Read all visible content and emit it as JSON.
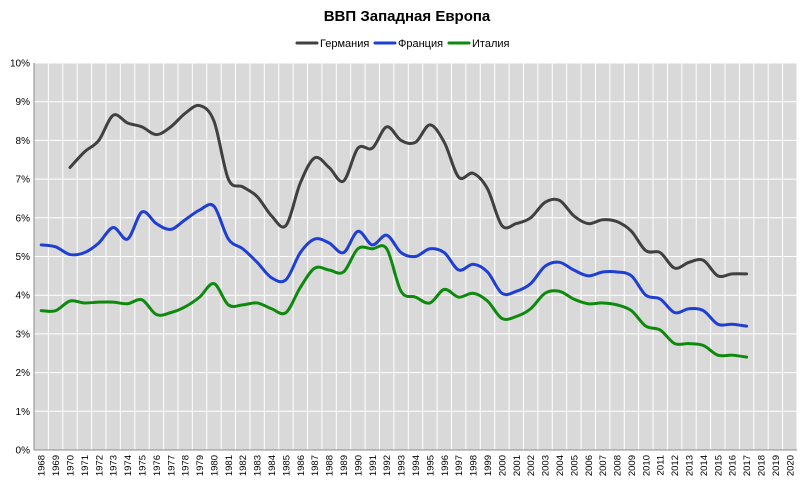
{
  "chart_data": {
    "type": "line",
    "title": "ВВП Западная Европа",
    "xlabel": "",
    "ylabel": "",
    "ylim": [
      0,
      10
    ],
    "y_ticks": [
      "0%",
      "1%",
      "2%",
      "3%",
      "4%",
      "5%",
      "6%",
      "7%",
      "8%",
      "9%",
      "10%"
    ],
    "categories": [
      "1968",
      "1969",
      "1970",
      "1971",
      "1972",
      "1973",
      "1974",
      "1975",
      "1976",
      "1977",
      "1978",
      "1979",
      "1980",
      "1981",
      "1982",
      "1983",
      "1984",
      "1985",
      "1986",
      "1987",
      "1988",
      "1989",
      "1990",
      "1991",
      "1992",
      "1993",
      "1994",
      "1995",
      "1996",
      "1997",
      "1998",
      "1999",
      "2000",
      "2001",
      "2002",
      "2003",
      "2004",
      "2005",
      "2006",
      "2007",
      "2008",
      "2009",
      "2010",
      "2011",
      "2012",
      "2013",
      "2014",
      "2015",
      "2016",
      "2017",
      "2018",
      "2019",
      "2020"
    ],
    "grid": true,
    "legend_position": "top",
    "series": [
      {
        "name": "Германия",
        "color": "#404040",
        "values": [
          null,
          null,
          7.3,
          7.7,
          8.0,
          8.65,
          8.45,
          8.35,
          8.15,
          8.35,
          8.7,
          8.9,
          8.5,
          7.0,
          6.8,
          6.55,
          6.05,
          5.8,
          6.9,
          7.55,
          7.3,
          6.95,
          7.8,
          7.8,
          8.35,
          8.0,
          7.95,
          8.4,
          7.95,
          7.05,
          7.15,
          6.75,
          5.8,
          5.85,
          6.0,
          6.4,
          6.45,
          6.05,
          5.85,
          5.95,
          5.9,
          5.65,
          5.15,
          5.1,
          4.7,
          4.85,
          4.9,
          4.5,
          4.55,
          4.55,
          null,
          null,
          null
        ]
      },
      {
        "name": "Франция",
        "color": "#1f3fd4",
        "values": [
          5.3,
          5.25,
          5.05,
          5.1,
          5.35,
          5.75,
          5.45,
          6.15,
          5.85,
          5.7,
          5.95,
          6.2,
          6.3,
          5.45,
          5.2,
          4.85,
          4.45,
          4.4,
          5.1,
          5.45,
          5.35,
          5.1,
          5.65,
          5.3,
          5.55,
          5.1,
          5.0,
          5.2,
          5.1,
          4.65,
          4.8,
          4.6,
          4.05,
          4.1,
          4.3,
          4.75,
          4.85,
          4.65,
          4.5,
          4.6,
          4.6,
          4.5,
          4.0,
          3.9,
          3.55,
          3.65,
          3.6,
          3.25,
          3.25,
          3.2,
          null,
          null,
          null
        ]
      },
      {
        "name": "Италия",
        "color": "#0d8a0d",
        "values": [
          3.6,
          3.6,
          3.85,
          3.8,
          3.82,
          3.82,
          3.78,
          3.88,
          3.5,
          3.55,
          3.7,
          3.95,
          4.3,
          3.75,
          3.75,
          3.8,
          3.65,
          3.55,
          4.2,
          4.7,
          4.65,
          4.6,
          5.2,
          5.2,
          5.2,
          4.1,
          3.95,
          3.8,
          4.15,
          3.95,
          4.05,
          3.85,
          3.4,
          3.45,
          3.65,
          4.05,
          4.1,
          3.9,
          3.78,
          3.8,
          3.75,
          3.6,
          3.2,
          3.1,
          2.75,
          2.75,
          2.7,
          2.45,
          2.45,
          2.4,
          null,
          null,
          null
        ]
      }
    ]
  }
}
